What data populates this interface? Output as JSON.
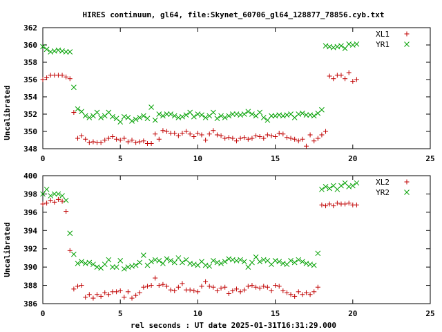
{
  "title": "HIRES continuum, gl64, file:Skynet_60706_gl64_128877_78856.cyb.txt",
  "xlabel": "rel seconds : UT date 2025-01-31T16:31:29.000",
  "chart_data": [
    {
      "type": "scatter",
      "ylabel": "Uncalibrated",
      "xlim": [
        0,
        25
      ],
      "ylim": [
        348,
        362
      ],
      "xticks": [
        0,
        5,
        10,
        15,
        20,
        25
      ],
      "yticks": [
        348,
        350,
        352,
        354,
        356,
        358,
        360,
        362
      ],
      "legend_position": "top-right",
      "series": [
        {
          "name": "XL1",
          "marker": "plus",
          "color": "#c00000",
          "x": [
            0.0,
            0.25,
            0.5,
            0.75,
            1.0,
            1.25,
            1.5,
            1.75,
            2.0,
            2.25,
            2.5,
            2.75,
            3.0,
            3.25,
            3.5,
            3.75,
            4.0,
            4.25,
            4.5,
            4.75,
            5.0,
            5.25,
            5.5,
            5.75,
            6.0,
            6.25,
            6.5,
            6.75,
            7.0,
            7.25,
            7.5,
            7.75,
            8.0,
            8.25,
            8.5,
            8.75,
            9.0,
            9.25,
            9.5,
            9.75,
            10.0,
            10.25,
            10.5,
            10.75,
            11.0,
            11.25,
            11.5,
            11.75,
            12.0,
            12.25,
            12.5,
            12.75,
            13.0,
            13.25,
            13.5,
            13.75,
            14.0,
            14.25,
            14.5,
            14.75,
            15.0,
            15.25,
            15.5,
            15.75,
            16.0,
            16.25,
            16.5,
            16.75,
            17.0,
            17.25,
            17.5,
            17.75,
            18.0,
            18.25,
            18.5,
            18.75,
            19.0,
            19.25,
            19.5,
            19.75,
            20.0,
            20.25
          ],
          "y": [
            356.0,
            356.2,
            356.5,
            356.5,
            356.5,
            356.5,
            356.3,
            356.1,
            352.2,
            349.2,
            349.5,
            349.1,
            348.7,
            348.8,
            348.7,
            348.7,
            349.0,
            349.2,
            349.4,
            349.1,
            349.0,
            349.2,
            348.8,
            349.0,
            348.7,
            348.8,
            348.9,
            348.6,
            348.6,
            349.7,
            349.1,
            350.1,
            350.0,
            349.8,
            349.8,
            349.5,
            349.8,
            350.0,
            349.7,
            349.4,
            349.8,
            349.6,
            349.0,
            349.7,
            350.1,
            349.6,
            349.5,
            349.2,
            349.3,
            349.2,
            348.9,
            349.2,
            349.3,
            349.1,
            349.2,
            349.5,
            349.4,
            349.2,
            349.6,
            349.5,
            349.4,
            349.8,
            349.7,
            349.3,
            349.2,
            349.1,
            348.9,
            349.1,
            348.3,
            349.6,
            348.9,
            349.2,
            349.6,
            350.0,
            356.4,
            356.1,
            356.5,
            356.5,
            356.1,
            356.8,
            355.8,
            356.0
          ]
        },
        {
          "name": "YR1",
          "marker": "cross",
          "color": "#00a000",
          "x": [
            0.0,
            0.25,
            0.5,
            0.75,
            1.0,
            1.25,
            1.5,
            1.75,
            2.0,
            2.25,
            2.5,
            2.75,
            3.0,
            3.25,
            3.5,
            3.75,
            4.0,
            4.25,
            4.5,
            4.75,
            5.0,
            5.25,
            5.5,
            5.75,
            6.0,
            6.25,
            6.5,
            6.75,
            7.0,
            7.25,
            7.5,
            7.75,
            8.0,
            8.25,
            8.5,
            8.75,
            9.0,
            9.25,
            9.5,
            9.75,
            10.0,
            10.25,
            10.5,
            10.75,
            11.0,
            11.25,
            11.5,
            11.75,
            12.0,
            12.25,
            12.5,
            12.75,
            13.0,
            13.25,
            13.5,
            13.75,
            14.0,
            14.25,
            14.5,
            14.75,
            15.0,
            15.25,
            15.5,
            15.75,
            16.0,
            16.25,
            16.5,
            16.75,
            17.0,
            17.25,
            17.5,
            17.75,
            18.0,
            18.25,
            18.5,
            18.75,
            19.0,
            19.25,
            19.5,
            19.75,
            20.0,
            20.25
          ],
          "y": [
            359.8,
            359.5,
            359.2,
            359.3,
            359.4,
            359.3,
            359.2,
            359.2,
            355.1,
            352.6,
            352.3,
            351.8,
            351.6,
            351.8,
            352.2,
            351.6,
            351.8,
            352.2,
            351.7,
            351.5,
            351.1,
            351.7,
            351.6,
            351.2,
            351.4,
            351.6,
            351.8,
            351.5,
            352.8,
            351.3,
            352.0,
            351.8,
            352.0,
            352.0,
            351.8,
            351.6,
            351.7,
            351.9,
            352.2,
            351.7,
            352.0,
            351.9,
            351.6,
            351.8,
            352.2,
            351.5,
            351.8,
            351.6,
            351.8,
            352.0,
            352.0,
            351.9,
            352.0,
            352.3,
            352.0,
            351.8,
            352.2,
            351.6,
            351.3,
            351.8,
            351.8,
            351.9,
            351.8,
            351.9,
            352.0,
            351.6,
            352.0,
            352.1,
            351.9,
            351.9,
            351.8,
            352.1,
            352.5,
            359.9,
            359.8,
            359.7,
            359.8,
            359.9,
            359.6,
            360.1,
            360.0,
            360.1
          ]
        }
      ]
    },
    {
      "type": "scatter",
      "ylabel": "Uncalibrated",
      "xlim": [
        0,
        25
      ],
      "ylim": [
        386,
        400
      ],
      "xticks": [
        0,
        5,
        10,
        15,
        20,
        25
      ],
      "yticks": [
        386,
        388,
        390,
        392,
        394,
        396,
        398,
        400
      ],
      "legend_position": "top-right",
      "series": [
        {
          "name": "XL2",
          "marker": "plus",
          "color": "#c00000",
          "x": [
            0.0,
            0.25,
            0.5,
            0.75,
            1.0,
            1.25,
            1.5,
            1.75,
            2.0,
            2.25,
            2.5,
            2.75,
            3.0,
            3.25,
            3.5,
            3.75,
            4.0,
            4.25,
            4.5,
            4.75,
            5.0,
            5.25,
            5.5,
            5.75,
            6.0,
            6.25,
            6.5,
            6.75,
            7.0,
            7.25,
            7.5,
            7.75,
            8.0,
            8.25,
            8.5,
            8.75,
            9.0,
            9.25,
            9.5,
            9.75,
            10.0,
            10.25,
            10.5,
            10.75,
            11.0,
            11.25,
            11.5,
            11.75,
            12.0,
            12.25,
            12.5,
            12.75,
            13.0,
            13.25,
            13.5,
            13.75,
            14.0,
            14.25,
            14.5,
            14.75,
            15.0,
            15.25,
            15.5,
            15.75,
            16.0,
            16.25,
            16.5,
            16.75,
            17.0,
            17.25,
            17.5,
            17.75,
            18.0,
            18.25,
            18.5,
            18.75,
            19.0,
            19.25,
            19.5,
            19.75,
            20.0,
            20.25
          ],
          "y": [
            396.9,
            397.0,
            397.3,
            397.1,
            397.4,
            397.2,
            396.1,
            391.8,
            387.6,
            387.9,
            388.0,
            386.7,
            387.0,
            386.6,
            387.0,
            386.8,
            387.2,
            387.0,
            387.3,
            387.3,
            387.4,
            386.7,
            387.3,
            386.6,
            386.9,
            387.2,
            387.8,
            387.9,
            388.0,
            388.8,
            388.0,
            388.1,
            387.9,
            387.5,
            387.4,
            387.8,
            388.2,
            387.5,
            387.5,
            387.4,
            387.3,
            387.9,
            388.4,
            387.9,
            387.8,
            387.4,
            387.7,
            387.8,
            387.1,
            387.4,
            387.6,
            387.3,
            387.5,
            387.9,
            388.0,
            387.8,
            387.7,
            387.9,
            387.8,
            387.4,
            388.0,
            387.9,
            387.4,
            387.2,
            387.0,
            386.8,
            387.3,
            387.0,
            387.2,
            387.0,
            387.3,
            387.8,
            396.8,
            396.7,
            396.9,
            396.7,
            397.0,
            396.9,
            396.9,
            397.0,
            396.8,
            396.8
          ]
        },
        {
          "name": "YR2",
          "marker": "cross",
          "color": "#00a000",
          "x": [
            0.0,
            0.25,
            0.5,
            0.75,
            1.0,
            1.25,
            1.5,
            1.75,
            2.0,
            2.25,
            2.5,
            2.75,
            3.0,
            3.25,
            3.5,
            3.75,
            4.0,
            4.25,
            4.5,
            4.75,
            5.0,
            5.25,
            5.5,
            5.75,
            6.0,
            6.25,
            6.5,
            6.75,
            7.0,
            7.25,
            7.5,
            7.75,
            8.0,
            8.25,
            8.5,
            8.75,
            9.0,
            9.25,
            9.5,
            9.75,
            10.0,
            10.25,
            10.5,
            10.75,
            11.0,
            11.25,
            11.5,
            11.75,
            12.0,
            12.25,
            12.5,
            12.75,
            13.0,
            13.25,
            13.5,
            13.75,
            14.0,
            14.25,
            14.5,
            14.75,
            15.0,
            15.25,
            15.5,
            15.75,
            16.0,
            16.25,
            16.5,
            16.75,
            17.0,
            17.25,
            17.5,
            17.75,
            18.0,
            18.25,
            18.5,
            18.75,
            19.0,
            19.25,
            19.5,
            19.75,
            20.0,
            20.25
          ],
          "y": [
            398.0,
            398.5,
            397.8,
            398.0,
            398.0,
            397.8,
            397.3,
            393.7,
            391.4,
            390.4,
            390.6,
            390.4,
            390.5,
            390.3,
            390.0,
            389.9,
            390.3,
            390.8,
            390.0,
            390.0,
            390.7,
            389.8,
            390.0,
            390.1,
            390.2,
            390.5,
            391.3,
            390.2,
            390.6,
            390.8,
            390.7,
            390.4,
            390.9,
            390.7,
            390.5,
            391.0,
            390.5,
            390.8,
            390.4,
            390.3,
            390.2,
            390.6,
            390.2,
            390.1,
            390.7,
            390.5,
            390.4,
            390.6,
            390.9,
            390.8,
            390.7,
            390.8,
            390.6,
            390.0,
            390.5,
            391.1,
            390.6,
            390.8,
            390.7,
            390.3,
            390.7,
            390.6,
            390.4,
            390.3,
            390.7,
            390.5,
            390.8,
            390.6,
            390.4,
            390.3,
            390.2,
            391.5,
            398.5,
            398.8,
            398.6,
            398.9,
            398.5,
            398.9,
            399.2,
            398.8,
            398.9,
            399.2
          ]
        }
      ]
    }
  ]
}
